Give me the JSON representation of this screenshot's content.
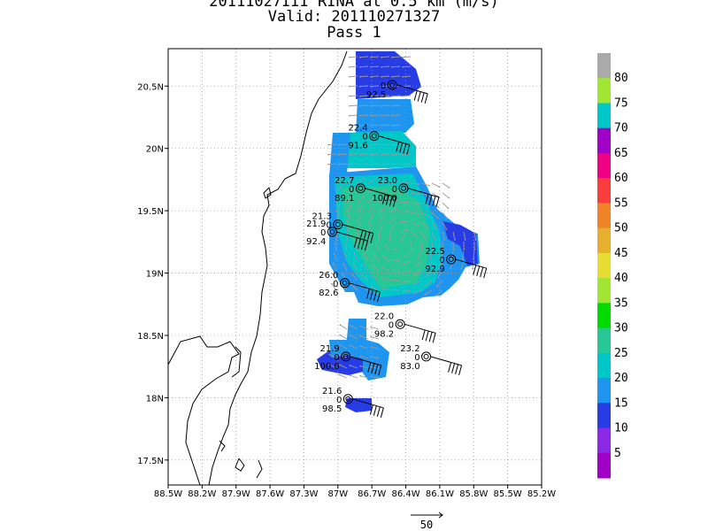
{
  "header": {
    "line1": "20111027III RINA at 0.5 km (m/s)",
    "line2": "Valid: 201110271327",
    "line3": "Pass 1"
  },
  "map": {
    "lon_ticks": [
      "88.5W",
      "88.2W",
      "87.9W",
      "87.6W",
      "87.3W",
      "87W",
      "86.7W",
      "86.4W",
      "86.1W",
      "85.8W",
      "85.5W",
      "85.2W"
    ],
    "lat_ticks": [
      "20.5N",
      "20N",
      "19.5N",
      "19N",
      "18.5N",
      "18N",
      "17.5N"
    ],
    "lon_range": [
      -88.5,
      -85.2
    ],
    "lat_range": [
      17.3,
      20.8
    ],
    "grid": true,
    "scale_label": "50"
  },
  "colorbar": {
    "labels": [
      "5",
      "10",
      "15",
      "20",
      "25",
      "30",
      "35",
      "40",
      "45",
      "50",
      "55",
      "60",
      "65",
      "70",
      "75",
      "80"
    ],
    "colors": [
      "#a000c8",
      "#8c28e6",
      "#283ce6",
      "#1e96f0",
      "#00c8c8",
      "#28c896",
      "#00dc00",
      "#a0e632",
      "#e6dc32",
      "#e6af2d",
      "#f08228",
      "#fa3c3c",
      "#f00082",
      "#a000c8",
      "#00c8c8",
      "#a0e632",
      "#aaaaaa"
    ]
  },
  "stations": [
    {
      "lat": 20.51,
      "lon": -86.52,
      "top": "",
      "mid": "0",
      "bot": "92.5"
    },
    {
      "lat": 20.1,
      "lon": -86.68,
      "top": "22.4",
      "mid": "0",
      "bot": "91.6"
    },
    {
      "lat": 19.68,
      "lon": -86.8,
      "top": "22.7",
      "mid": "0",
      "bot": "89.1"
    },
    {
      "lat": 19.68,
      "lon": -86.42,
      "top": "23.0",
      "mid": "0",
      "bot": "100.0"
    },
    {
      "lat": 19.39,
      "lon": -87.0,
      "top": "21.3",
      "mid": "0",
      "bot": ""
    },
    {
      "lat": 19.33,
      "lon": -87.05,
      "top": "21.9",
      "mid": "0",
      "bot": "92.4"
    },
    {
      "lat": 19.11,
      "lon": -86.0,
      "top": "22.5",
      "mid": "0",
      "bot": "92.9"
    },
    {
      "lat": 18.92,
      "lon": -86.94,
      "top": "26.0",
      "mid": "0",
      "bot": "82.6"
    },
    {
      "lat": 18.59,
      "lon": -86.45,
      "top": "22.0",
      "mid": "0",
      "bot": "98.2"
    },
    {
      "lat": 18.33,
      "lon": -86.93,
      "top": "21.9",
      "mid": "0",
      "bot": "100.0"
    },
    {
      "lat": 18.33,
      "lon": -86.22,
      "top": "23.2",
      "mid": "0",
      "bot": "83.0"
    },
    {
      "lat": 17.99,
      "lon": -86.91,
      "top": "21.6",
      "mid": "0",
      "bot": "98.5"
    }
  ]
}
